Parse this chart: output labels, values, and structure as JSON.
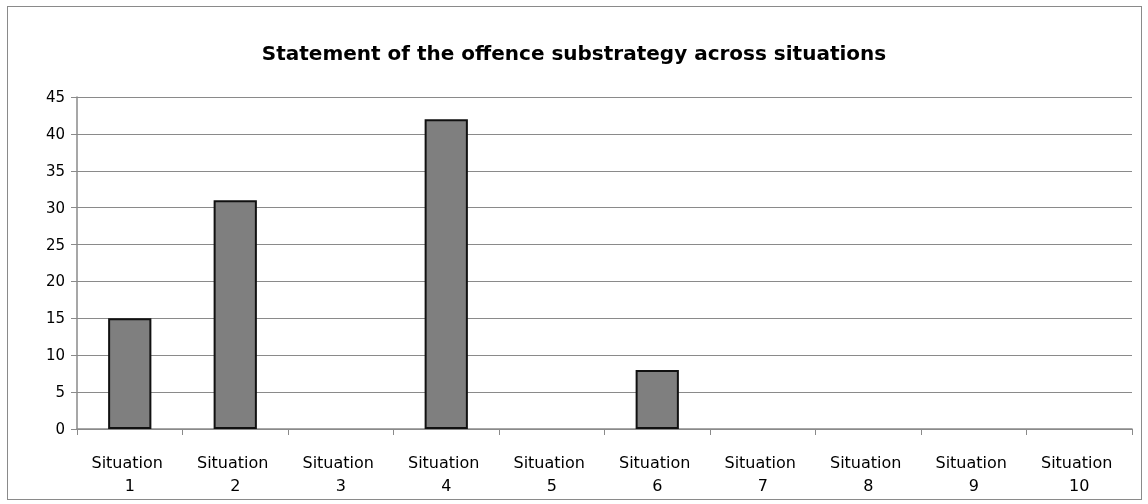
{
  "chart_data": {
    "type": "bar",
    "title": "Statement of the offence substrategy across situations",
    "categories": [
      "Situation 1",
      "Situation 2",
      "Situation 3",
      "Situation 4",
      "Situation 5",
      "Situation 6",
      "Situation 7",
      "Situation 8",
      "Situation 9",
      "Situation 10"
    ],
    "values": [
      15,
      31,
      0,
      42,
      0,
      8,
      0,
      0,
      0,
      0
    ],
    "color": "#7f7f7f",
    "ylim": [
      0,
      45
    ],
    "yticks": [
      0,
      5,
      10,
      15,
      20,
      25,
      30,
      35,
      40,
      45
    ],
    "grid": "y"
  }
}
